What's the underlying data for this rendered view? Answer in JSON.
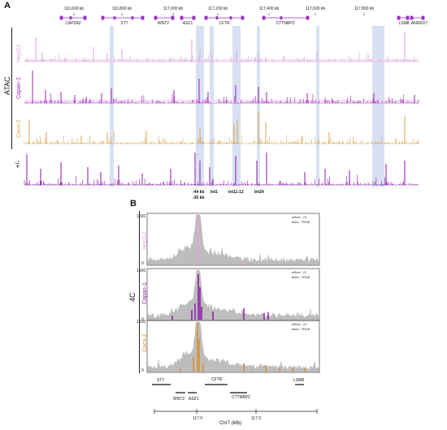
{
  "panelA": {
    "label": "A",
    "coords": [
      "116,600 kb",
      "116,800 kb",
      "117,000 kb",
      "117,200 kb",
      "117,400 kb",
      "117,600 kb",
      "117,800 kb"
    ],
    "genes": [
      "CAP2A2",
      "ST7",
      "WNT2",
      "ASZ1",
      "CFTR",
      "CTTNBP2",
      "LSM8",
      "ANKRD7"
    ],
    "group_label": "ATAC",
    "tracks": [
      {
        "name": "HepG2",
        "color": "#d9a3d9"
      },
      {
        "name": "Capan-1",
        "color": "#9b1fb8"
      },
      {
        "name": "Caco-2",
        "color": "#d9a44a"
      },
      {
        "name": "+/-",
        "color": "#8a16a8"
      }
    ],
    "annotations": {
      "kb44": "-44 kb",
      "kb35": "-35 kb",
      "int1": "Int1",
      "int1112": "Int11-12",
      "int24": "Int24"
    },
    "highlight_color": "#c9d7ee"
  },
  "panelB": {
    "label": "B",
    "group_label": "4C",
    "tracks": [
      {
        "name": "HepG2",
        "color": "#e4a3e4",
        "ymax": "1500",
        "ymin": "0",
        "wsize": "wSize : 21",
        "blind": "blind : TRUE"
      },
      {
        "name": "Capan-1",
        "color": "#8a16a8",
        "ymax": "1500",
        "ymin": "0",
        "wsize": "wSize : 21",
        "blind": "blind : TRUE"
      },
      {
        "name": "Caco-2",
        "color": "#d98c2a",
        "ymax": "1500",
        "ymin": "0",
        "wsize": "wSize : 21",
        "blind": "blind : TRUE"
      }
    ],
    "genes": [
      "ST7",
      "CFTR",
      "LSM8",
      "WNT2",
      "ASZ1",
      "CTTNBP2"
    ],
    "xticks": [
      "117.0",
      "117.5"
    ],
    "xlabel": "Chr7 (Mb)"
  }
}
